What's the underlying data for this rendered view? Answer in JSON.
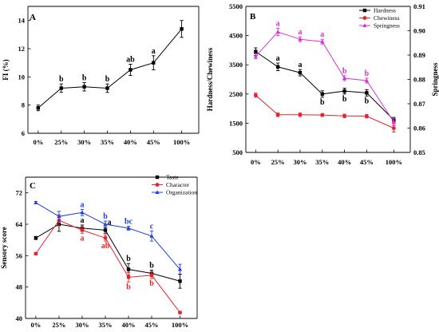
{
  "chart_data": [
    {
      "panel": "A",
      "type": "line",
      "categories": [
        "0%",
        "25%",
        "30%",
        "35%",
        "40%",
        "45%",
        "100%"
      ],
      "ylabel": "FI (%)",
      "ylim": [
        6,
        15
      ],
      "yticks": [
        6,
        8,
        10,
        12,
        14
      ],
      "series": [
        {
          "color": "#000000",
          "marker": "square",
          "values": [
            7.8,
            9.2,
            9.3,
            9.2,
            10.5,
            11.0,
            13.4
          ],
          "errors": [
            0.2,
            0.3,
            0.3,
            0.3,
            0.4,
            0.5,
            0.6
          ],
          "labels": [
            "",
            "b",
            "b",
            "b",
            "ab",
            "a",
            ""
          ]
        }
      ]
    },
    {
      "panel": "B",
      "type": "line",
      "categories": [
        "0%",
        "25%",
        "30%",
        "35%",
        "40%",
        "45%",
        "100%"
      ],
      "ylabel": "Hardness/Chewiness",
      "ylim": [
        500,
        5500
      ],
      "yticks": [
        500,
        1500,
        2500,
        3500,
        4500,
        5500
      ],
      "y2label": "Springness",
      "y2lim": [
        0.85,
        0.91
      ],
      "y2ticks": [
        0.85,
        0.86,
        0.87,
        0.88,
        0.89,
        0.9,
        0.91
      ],
      "legend_position": "top-right",
      "series": [
        {
          "name": "Hardness",
          "axis": "left",
          "color": "#000000",
          "marker": "square",
          "values": [
            3950,
            3430,
            3230,
            2500,
            2600,
            2540,
            1610
          ],
          "errors": [
            130,
            130,
            110,
            110,
            100,
            110,
            90
          ],
          "labels": [
            "",
            "a",
            "a",
            "b",
            "b",
            "b",
            ""
          ]
        },
        {
          "name": "Chewiness",
          "axis": "left",
          "color": "#e8242b",
          "marker": "circle",
          "values": [
            2460,
            1790,
            1790,
            1780,
            1750,
            1740,
            1330
          ],
          "errors": [
            70,
            60,
            60,
            50,
            60,
            60,
            130
          ],
          "labels": [
            "",
            "",
            "",
            "",
            "",
            "",
            ""
          ]
        },
        {
          "name": "Springness",
          "axis": "right",
          "color": "#d633d6",
          "marker": "triangle",
          "values": [
            0.8895,
            0.8995,
            0.8965,
            0.8955,
            0.8805,
            0.8795,
            0.8625
          ],
          "errors": [
            0.001,
            0.0015,
            0.001,
            0.001,
            0.001,
            0.001,
            0.0015
          ],
          "labels": [
            "",
            "a",
            "a",
            "a",
            "b",
            "b",
            ""
          ]
        }
      ]
    },
    {
      "panel": "C",
      "type": "line",
      "categories": [
        "0%",
        "25%",
        "30%",
        "35%",
        "40%",
        "45%",
        "100%"
      ],
      "ylabel": "Sensory score",
      "ylim": [
        40,
        76
      ],
      "yticks": [
        40,
        48,
        56,
        64,
        72
      ],
      "legend_position": "top-right",
      "series": [
        {
          "name": "Taste",
          "color": "#000000",
          "marker": "square",
          "values": [
            60.5,
            64,
            63,
            62.5,
            52.5,
            51.5,
            49.5
          ],
          "errors": [
            0.4,
            1.8,
            0.8,
            0.8,
            1.5,
            0.8,
            1.8
          ],
          "labels": [
            "",
            "",
            "a",
            "a",
            "b",
            "b",
            ""
          ]
        },
        {
          "name": "Character",
          "color": "#e8242b",
          "marker": "circle",
          "values": [
            56.5,
            65,
            62.5,
            60.5,
            50.5,
            51,
            41.5
          ],
          "errors": [
            0.3,
            1.4,
            0.8,
            0.8,
            1.2,
            0.8,
            0.3
          ],
          "labels": [
            "",
            "",
            "a",
            "ab",
            "b",
            "b",
            ""
          ]
        },
        {
          "name": "Organization",
          "color": "#1f3ee6",
          "marker": "triangle",
          "values": [
            69.5,
            66,
            67,
            64,
            63,
            61,
            52.5
          ],
          "errors": [
            0.3,
            1.3,
            0.8,
            0.8,
            0.5,
            1.3,
            1.3
          ],
          "labels": [
            "",
            "",
            "a",
            "b",
            "bc",
            "c",
            ""
          ]
        }
      ]
    }
  ]
}
